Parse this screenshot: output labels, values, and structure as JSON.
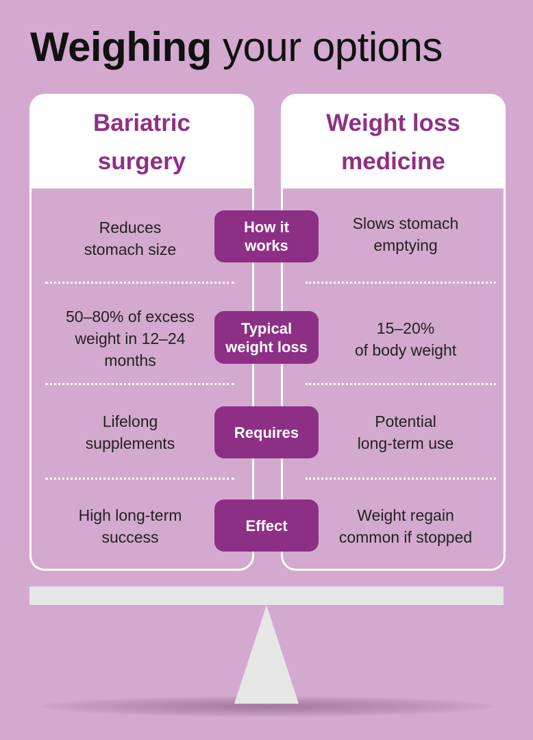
{
  "title": {
    "bold": "Weighing",
    "light": "your options"
  },
  "columns": {
    "left": {
      "heading": "Bariatric\nsurgery"
    },
    "right": {
      "heading": "Weight loss\nmedicine"
    }
  },
  "rows": [
    {
      "label": "How it\nworks",
      "left": "Reduces\nstomach size",
      "right": "Slows stomach\nemptying"
    },
    {
      "label": "Typical\nweight loss",
      "left": "50–80% of excess\nweight in 12–24\nmonths",
      "right": "15–20%\nof body weight"
    },
    {
      "label": "Requires",
      "left": "Lifelong\nsupplements",
      "right": "Potential\nlong-term use"
    },
    {
      "label": "Effect",
      "left": "High long-term\nsuccess",
      "right": "Weight regain\ncommon if stopped"
    }
  ],
  "colors": {
    "background": "#d3a9cf",
    "accent": "#8e2f86",
    "card_head": "#ffffff",
    "scale": "#e6e6e6"
  },
  "icons": {
    "scale": "balance-scale-icon"
  }
}
